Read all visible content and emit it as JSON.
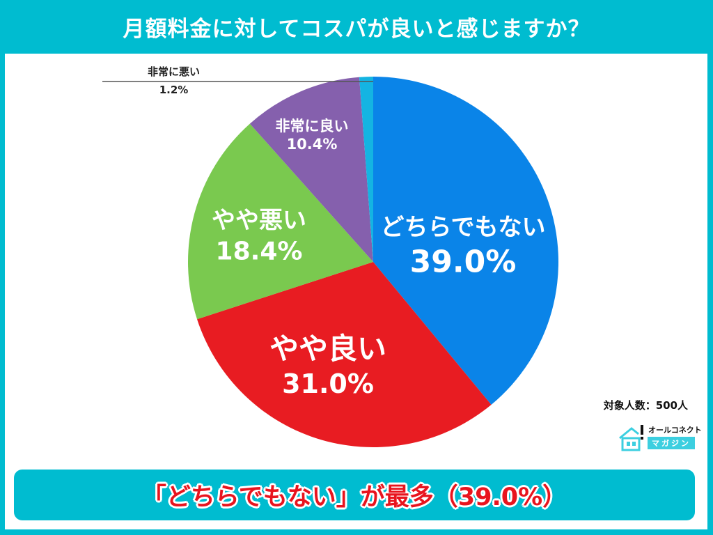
{
  "header": {
    "title": "月額料金に対してコスパが良いと感じますか？"
  },
  "chart_data": {
    "type": "pie",
    "title": "月額料金に対してコスパが良いと感じますか？",
    "start_angle_deg": 0,
    "direction": "clockwise",
    "slices": [
      {
        "label": "どちらでもない",
        "value": 39.0,
        "display": "39.0%",
        "color": "#0a84e8"
      },
      {
        "label": "やや良い",
        "value": 31.0,
        "display": "31.0%",
        "color": "#e81c22"
      },
      {
        "label": "やや悪い",
        "value": 18.4,
        "display": "18.4%",
        "color": "#7ac94f"
      },
      {
        "label": "非常に良い",
        "value": 10.4,
        "display": "10.4%",
        "color": "#8560ad"
      },
      {
        "label": "非常に悪い",
        "value": 1.2,
        "display": "1.2%",
        "color": "#14b4e2"
      }
    ],
    "unit": "%"
  },
  "labels": {
    "dochira": {
      "name": "どちらでもない",
      "pct": "39.0%"
    },
    "yayayoi": {
      "name": "やや良い",
      "pct": "31.0%"
    },
    "yayawarui": {
      "name": "やや悪い",
      "pct": "18.4%"
    },
    "hijoyoi": {
      "name": "非常に良い",
      "pct": "10.4%"
    },
    "hijowarui": {
      "name": "非常に悪い",
      "pct": "1.2%"
    }
  },
  "footer": {
    "respondents": "対象人数：500人",
    "brand_top": "オールコネクト",
    "brand_bottom": "マガジン"
  },
  "banner": {
    "text": "「どちらでもない」が最多（39.0%）"
  },
  "colors": {
    "frame": "#00bcd0",
    "banner_text": "#e8141e"
  }
}
